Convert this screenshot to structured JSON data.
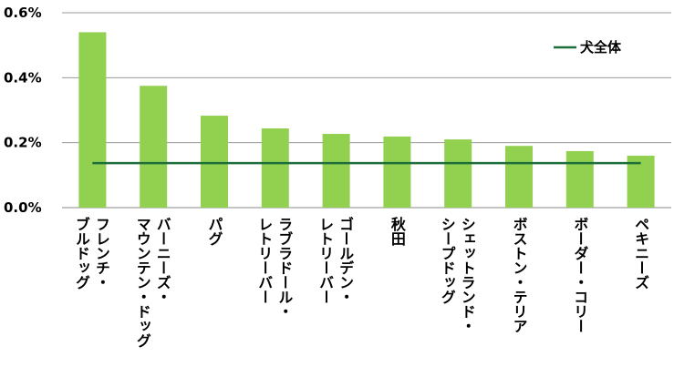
{
  "chart_data": {
    "type": "bar",
    "categories": [
      [
        "フレンチ・",
        "ブルドッグ"
      ],
      [
        "バーニーズ・",
        "マウンテン・ドッグ"
      ],
      [
        "パグ"
      ],
      [
        "ラブラドール・",
        "レトリーバー"
      ],
      [
        "ゴールデン・",
        "レトリーバー"
      ],
      [
        "秋田"
      ],
      [
        "シェットランド・",
        "シープドッグ"
      ],
      [
        "ボストン・テリア"
      ],
      [
        "ボーダー・コリー"
      ],
      [
        "ペキニーズ"
      ]
    ],
    "values": [
      0.54,
      0.375,
      0.283,
      0.244,
      0.227,
      0.219,
      0.21,
      0.19,
      0.174,
      0.16
    ],
    "color": "#92d050",
    "reference": {
      "name": "犬全体",
      "value": 0.137,
      "color": "#1e6e3c"
    },
    "ylim": [
      0,
      0.6
    ],
    "yticks": [
      {
        "value": 0,
        "label": "0.0%"
      },
      {
        "value": 0.2,
        "label": "0.2%"
      },
      {
        "value": 0.4,
        "label": "0.4%"
      },
      {
        "value": 0.6,
        "label": "0.6%"
      }
    ],
    "grid": true
  }
}
